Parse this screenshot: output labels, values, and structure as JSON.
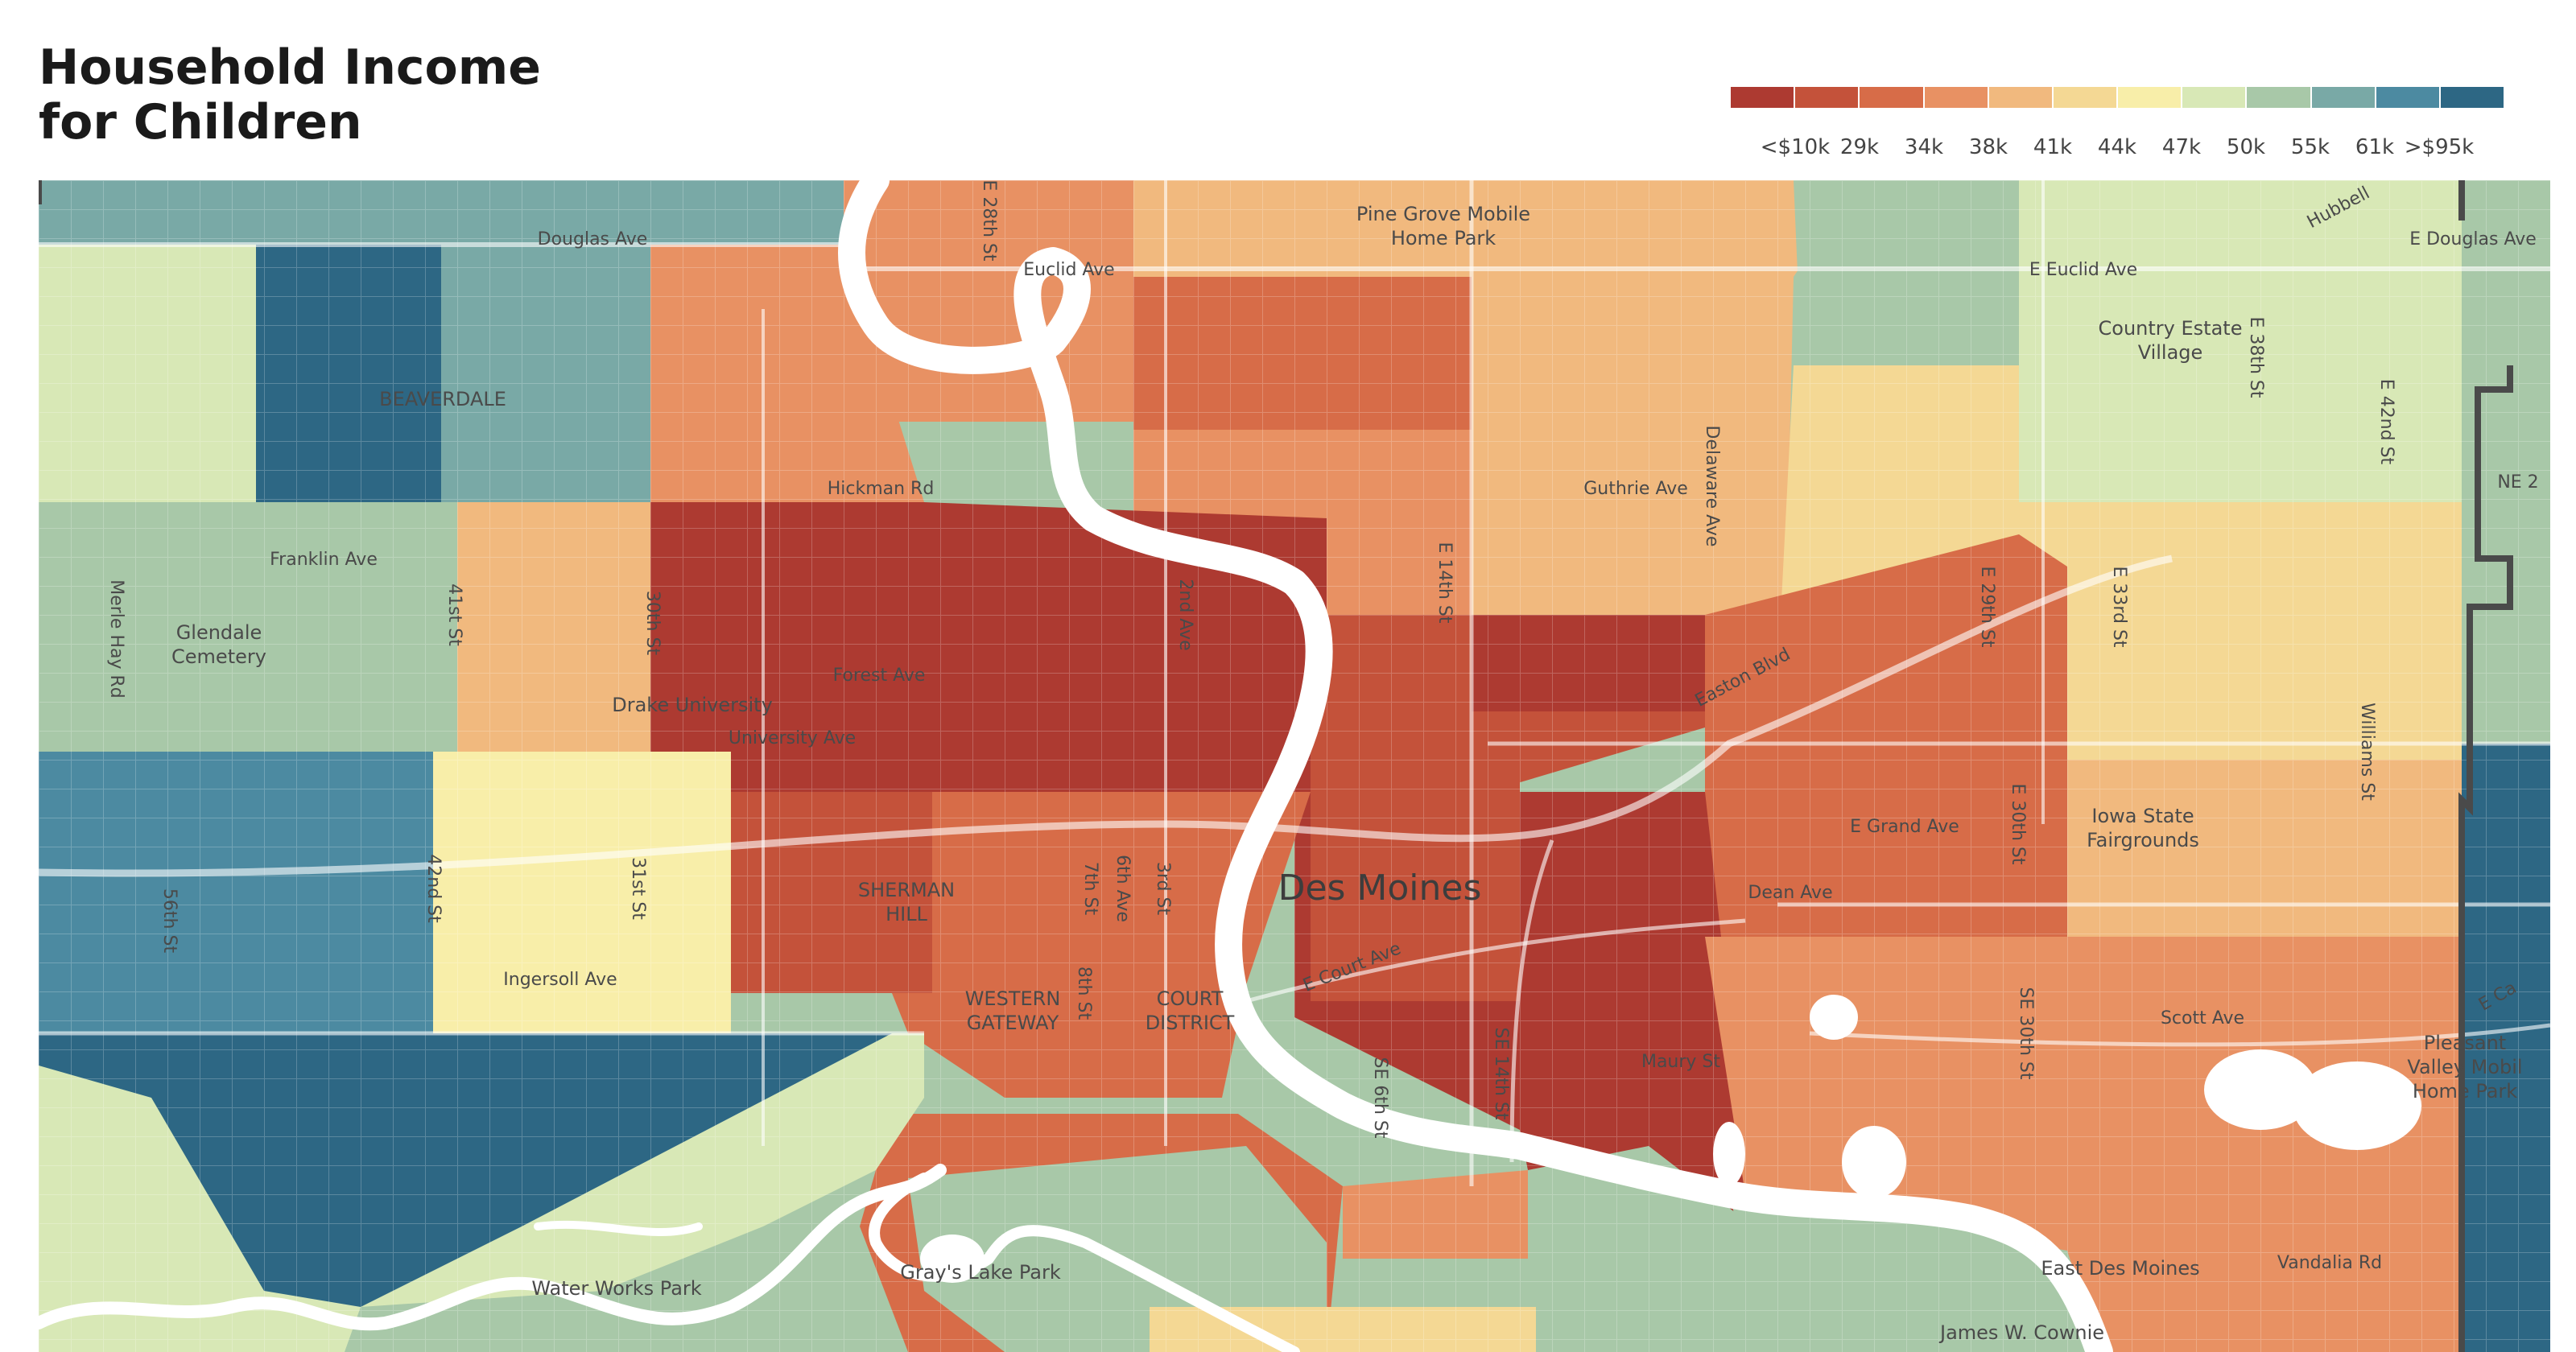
{
  "title": {
    "line1": "Household Income",
    "line2": "for Children"
  },
  "legend": {
    "colors": [
      "#ad3a31",
      "#c4523a",
      "#d76c48",
      "#e89163",
      "#f1b97e",
      "#f4d894",
      "#f8eea9",
      "#d8e8b6",
      "#a8c8a8",
      "#79a9a6",
      "#4c8aa1",
      "#2d6784"
    ],
    "labels": [
      "<$10k",
      "29k",
      "34k",
      "38k",
      "41k",
      "44k",
      "47k",
      "50k",
      "55k",
      "61k",
      ">$95k"
    ]
  },
  "map": {
    "city": "Des Moines",
    "places": [
      "Pine Grove Mobile",
      "Home Park",
      "Country Estate",
      "Village",
      "BEAVERDALE",
      "Glendale",
      "Cemetery",
      "Drake University",
      "SHERMAN",
      "HILL",
      "WESTERN",
      "GATEWAY",
      "COURT",
      "DISTRICT",
      "Iowa State",
      "Fairgrounds",
      "Gray's Lake Park",
      "Water Works Park",
      "East Des Moines",
      "James W. Cownie",
      "Pleasant",
      "Valley Mobil",
      "Home Park"
    ],
    "streets": [
      "Douglas Ave",
      "Euclid Ave",
      "E Euclid Ave",
      "E Douglas Ave",
      "Hubbell",
      "Hickman Rd",
      "Franklin Ave",
      "Guthrie Ave",
      "Forest Ave",
      "University Ave",
      "Easton Blvd",
      "E Grand Ave",
      "Dean Ave",
      "E Court Ave",
      "Ingersoll Ave",
      "Scott Ave",
      "Maury St",
      "Vandalia Rd",
      "NE 2",
      "Merle Hay Rd",
      "41st St",
      "30th St",
      "2nd Ave",
      "E 14th St",
      "Delaware Ave",
      "E 29th St",
      "E 33rd St",
      "E 38th St",
      "E 42nd St",
      "Williams St",
      "E 30th St",
      "SE 30th St",
      "42nd St",
      "31st St",
      "56th St",
      "7th St",
      "6th Ave",
      "3rd St",
      "8th St",
      "SE 6th St",
      "SE 14th St",
      "E 28th St",
      "E Ca"
    ]
  }
}
